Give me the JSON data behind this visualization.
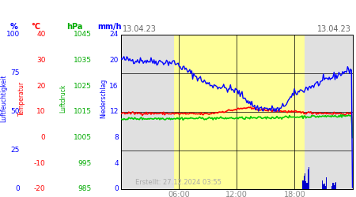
{
  "title_left": "13.04.23",
  "title_right": "13.04.23",
  "created": "Erstellt: 27.12.2024 03:55",
  "x_labels": [
    "06:00",
    "12:00",
    "18:00"
  ],
  "x_ticks": [
    6,
    12,
    18
  ],
  "x_range": [
    0,
    24
  ],
  "ylabel_left1": "Luftfeuchtigkeit",
  "ylabel_left2": "Temperatur",
  "ylabel_left3": "Luftdruck",
  "ylabel_left4": "Niederschlag",
  "unit1": "%",
  "unit2": "°C",
  "unit3": "hPa",
  "unit4": "mm/h",
  "yticks_perc": [
    0,
    25,
    50,
    75,
    100
  ],
  "yticks_temp": [
    -20,
    -10,
    0,
    10,
    20,
    30,
    40
  ],
  "yticks_hpa": [
    985,
    995,
    1005,
    1015,
    1025,
    1035,
    1045
  ],
  "yticks_mmh": [
    0,
    4,
    8,
    12,
    16,
    20,
    24
  ],
  "bg_gray": "#e0e0e0",
  "bg_yellow": "#ffff99",
  "bg_white": "#ffffff",
  "line_blue": "#0000ff",
  "line_red": "#ff0000",
  "line_green": "#00cc00",
  "bar_blue": "#0000cc",
  "grid_color": "#000000",
  "tick_color": "#888888",
  "date_color": "#666666",
  "created_color": "#aaaaaa",
  "daytime_start": 5.5,
  "daytime_end": 19.0,
  "perc_min": 0,
  "perc_max": 100,
  "temp_min": -20,
  "temp_max": 40,
  "hpa_min": 985,
  "hpa_max": 1045,
  "mmh_min": 0,
  "mmh_max": 24
}
